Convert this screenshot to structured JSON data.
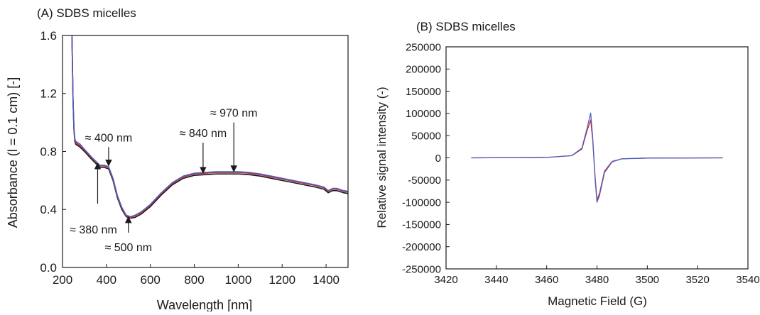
{
  "chart_data": [
    {
      "type": "line",
      "panel_label": "(A) SDBS micelles",
      "xlabel": "Wavelength [nm]",
      "ylabel": "Absorbance (l = 0.1 cm) [-]",
      "xlim": [
        200,
        1500
      ],
      "ylim": [
        0.0,
        1.6
      ],
      "xticks": [
        "200",
        "400",
        "600",
        "800",
        "1000",
        "1200",
        "1400"
      ],
      "yticks": [
        "0.0",
        "0.4",
        "0.8",
        "1.2",
        "1.6"
      ],
      "grid": false,
      "series": [
        {
          "color": "#1a1a1a",
          "x": [
            243,
            248,
            252,
            256,
            260,
            270,
            280,
            300,
            330,
            350,
            370,
            390,
            410,
            430,
            450,
            470,
            490,
            510,
            530,
            560,
            600,
            650,
            700,
            750,
            800,
            850,
            900,
            950,
            1000,
            1050,
            1100,
            1150,
            1200,
            1250,
            1300,
            1350,
            1390,
            1410,
            1430,
            1450,
            1480,
            1500
          ],
          "y": [
            1.6,
            1.15,
            0.95,
            0.87,
            0.85,
            0.84,
            0.83,
            0.8,
            0.75,
            0.72,
            0.69,
            0.69,
            0.68,
            0.6,
            0.48,
            0.4,
            0.35,
            0.34,
            0.345,
            0.37,
            0.42,
            0.5,
            0.57,
            0.615,
            0.635,
            0.64,
            0.645,
            0.645,
            0.645,
            0.64,
            0.63,
            0.615,
            0.6,
            0.585,
            0.57,
            0.555,
            0.54,
            0.515,
            0.53,
            0.53,
            0.515,
            0.51
          ]
        },
        {
          "color": "#d62728",
          "x": [
            243,
            248,
            252,
            256,
            260,
            270,
            280,
            300,
            330,
            350,
            370,
            390,
            410,
            430,
            450,
            470,
            490,
            510,
            530,
            560,
            600,
            650,
            700,
            750,
            800,
            850,
            900,
            950,
            1000,
            1050,
            1100,
            1150,
            1200,
            1250,
            1300,
            1350,
            1390,
            1410,
            1430,
            1450,
            1480,
            1500
          ],
          "y": [
            1.6,
            1.16,
            0.96,
            0.88,
            0.86,
            0.85,
            0.84,
            0.81,
            0.76,
            0.73,
            0.7,
            0.7,
            0.69,
            0.61,
            0.49,
            0.41,
            0.355,
            0.345,
            0.355,
            0.38,
            0.43,
            0.51,
            0.58,
            0.625,
            0.645,
            0.65,
            0.655,
            0.655,
            0.655,
            0.65,
            0.64,
            0.625,
            0.61,
            0.595,
            0.58,
            0.565,
            0.55,
            0.525,
            0.54,
            0.54,
            0.525,
            0.52
          ]
        },
        {
          "color": "#4a5fc1",
          "x": [
            243,
            248,
            252,
            256,
            260,
            270,
            280,
            300,
            330,
            350,
            370,
            390,
            410,
            430,
            450,
            470,
            490,
            510,
            530,
            560,
            600,
            650,
            700,
            750,
            800,
            850,
            900,
            950,
            1000,
            1050,
            1100,
            1150,
            1200,
            1250,
            1300,
            1350,
            1390,
            1410,
            1430,
            1450,
            1480,
            1500
          ],
          "y": [
            1.6,
            1.17,
            0.97,
            0.89,
            0.87,
            0.86,
            0.85,
            0.815,
            0.765,
            0.735,
            0.705,
            0.705,
            0.695,
            0.615,
            0.495,
            0.415,
            0.36,
            0.35,
            0.36,
            0.385,
            0.435,
            0.515,
            0.585,
            0.63,
            0.65,
            0.655,
            0.66,
            0.66,
            0.66,
            0.655,
            0.645,
            0.63,
            0.615,
            0.6,
            0.585,
            0.57,
            0.555,
            0.53,
            0.545,
            0.545,
            0.53,
            0.525
          ]
        }
      ],
      "annotations": [
        {
          "label": "≈ 400 nm",
          "x": 410,
          "y_start": 0.83,
          "y_end": 0.72,
          "direction": "down"
        },
        {
          "label": "≈ 380 nm",
          "x": 360,
          "y_start": 0.44,
          "y_end": 0.7,
          "direction": "up"
        },
        {
          "label": "≈ 500 nm",
          "x": 500,
          "y_start": 0.24,
          "y_end": 0.33,
          "direction": "up"
        },
        {
          "label": "≈ 840 nm",
          "x": 840,
          "y_start": 0.86,
          "y_end": 0.67,
          "direction": "down"
        },
        {
          "label": "≈ 970 nm",
          "x": 980,
          "y_start": 1.0,
          "y_end": 0.68,
          "direction": "down"
        }
      ]
    },
    {
      "type": "line",
      "panel_label": "(B) SDBS micelles",
      "xlabel": "Magnetic Field (G)",
      "ylabel": "Relative signal intensity (-)",
      "xlim": [
        3420,
        3540
      ],
      "ylim": [
        -250000,
        250000
      ],
      "xticks": [
        "3420",
        "3440",
        "3460",
        "3480",
        "3500",
        "3520",
        "3540"
      ],
      "yticks": [
        "250000",
        "200000",
        "150000",
        "100000",
        "50000",
        "0",
        "-50000",
        "-100000",
        "-150000",
        "-200000",
        "-250000"
      ],
      "grid": false,
      "series": [
        {
          "color": "#d62728",
          "x": [
            3430,
            3460,
            3470,
            3474,
            3476,
            3477.5,
            3478.3,
            3479.2,
            3480,
            3481,
            3483,
            3486,
            3490,
            3500,
            3530
          ],
          "y": [
            0,
            1000,
            5000,
            20000,
            60000,
            85000,
            40000,
            -40000,
            -95000,
            -80000,
            -30000,
            -8000,
            -2000,
            -500,
            0
          ]
        },
        {
          "color": "#4a5fc1",
          "x": [
            3430,
            3460,
            3470,
            3474,
            3476,
            3477.5,
            3478.3,
            3479.2,
            3480,
            3481,
            3483,
            3486,
            3490,
            3500,
            3530
          ],
          "y": [
            0,
            1000,
            5000,
            22000,
            65000,
            101000,
            45000,
            -45000,
            -100000,
            -85000,
            -33000,
            -9000,
            -2000,
            -500,
            0
          ]
        }
      ]
    }
  ]
}
